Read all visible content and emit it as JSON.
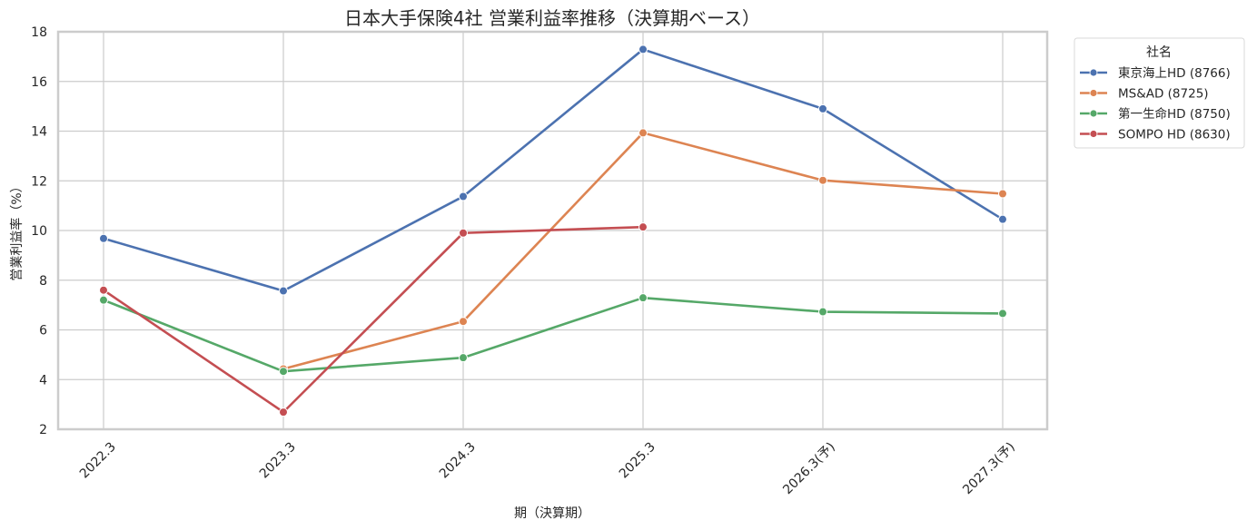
{
  "chart_data": {
    "type": "line",
    "title": "日本大手保険4社 営業利益率推移（決算期ベース）",
    "xlabel": "期（決算期）",
    "ylabel": "営業利益率（%）",
    "categories": [
      "2022.3",
      "2023.3",
      "2024.3",
      "2025.3",
      "2026.3(予)",
      "2027.3(予)"
    ],
    "ylim": [
      2,
      18
    ],
    "yticks": [
      2,
      4,
      6,
      8,
      10,
      12,
      14,
      16,
      18
    ],
    "grid": true,
    "legend": {
      "title": "社名",
      "position": "outside upper right"
    },
    "series": [
      {
        "name": "東京海上HD (8766)",
        "color": "#4c72b0",
        "values": [
          9.68,
          7.57,
          11.37,
          17.29,
          14.9,
          10.45
        ]
      },
      {
        "name": "MS&AD (8725)",
        "color": "#dd8452",
        "values": [
          null,
          4.43,
          6.34,
          13.93,
          12.02,
          11.48
        ]
      },
      {
        "name": "第一生命HD (8750)",
        "color": "#55a868",
        "values": [
          7.2,
          4.33,
          4.88,
          7.29,
          6.73,
          6.66
        ]
      },
      {
        "name": "SOMPO HD (8630)",
        "color": "#c44e52",
        "values": [
          7.6,
          2.69,
          9.9,
          10.14,
          null,
          null
        ]
      }
    ]
  }
}
